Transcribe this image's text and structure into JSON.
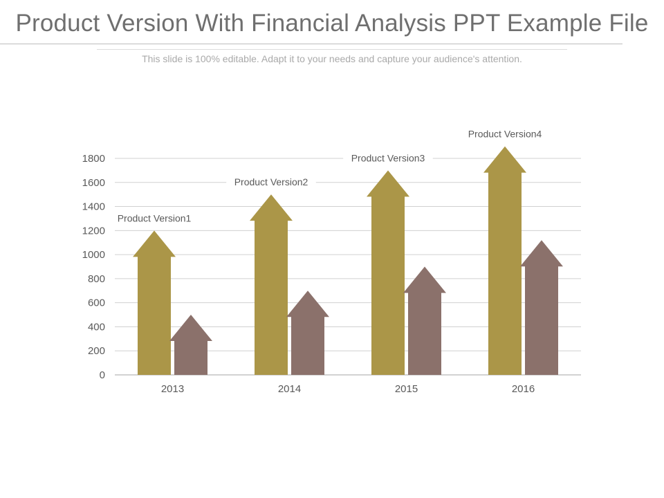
{
  "slide": {
    "title": "Product Version With Financial Analysis PPT Example File",
    "subtitle": "This slide is 100% editable. Adapt it to your needs and capture your audience's attention."
  },
  "colors": {
    "series_1": "#ab9648",
    "series_2": "#8b716b",
    "gridline": "#d0d0d0",
    "axis": "#a6a6a6",
    "text": "#595959"
  },
  "chart_data": {
    "type": "bar",
    "bar_shape": "arrow",
    "categories": [
      "2013",
      "2014",
      "2015",
      "2016"
    ],
    "series": [
      {
        "values": [
          1200,
          1500,
          1700,
          1900
        ]
      },
      {
        "values": [
          500,
          700,
          900,
          1120
        ]
      }
    ],
    "annotations": [
      "Product Version1",
      "Product Version2",
      "Product Version3",
      "Product Version4"
    ],
    "yticks": [
      0,
      200,
      400,
      600,
      800,
      1000,
      1200,
      1400,
      1600,
      1800
    ],
    "ylim": [
      0,
      1800
    ],
    "grid": true,
    "legend": false
  }
}
